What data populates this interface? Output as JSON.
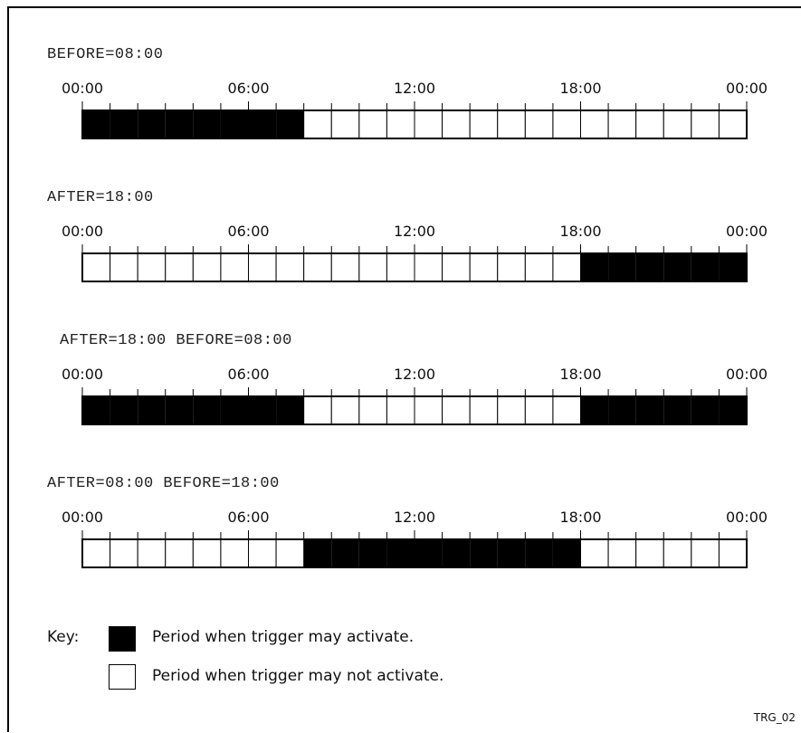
{
  "time_labels": [
    "00:00",
    "06:00",
    "12:00",
    "18:00",
    "00:00"
  ],
  "panels": [
    {
      "title": "BEFORE=08:00",
      "active_hours": [
        [
          0,
          8
        ]
      ]
    },
    {
      "title": "AFTER=18:00",
      "active_hours": [
        [
          18,
          24
        ]
      ]
    },
    {
      "title": "AFTER=18:00 BEFORE=08:00",
      "active_hours": [
        [
          0,
          8
        ],
        [
          18,
          24
        ]
      ]
    },
    {
      "title": "AFTER=08:00 BEFORE=18:00",
      "active_hours": [
        [
          8,
          18
        ]
      ]
    }
  ],
  "key": {
    "label": "Key:",
    "active_text": "Period when trigger may activate.",
    "inactive_text": "Period when trigger may not activate."
  },
  "corner_code": "TRG_02",
  "colors": {
    "active": "#000000",
    "inactive": "#ffffff",
    "line": "#000000"
  }
}
